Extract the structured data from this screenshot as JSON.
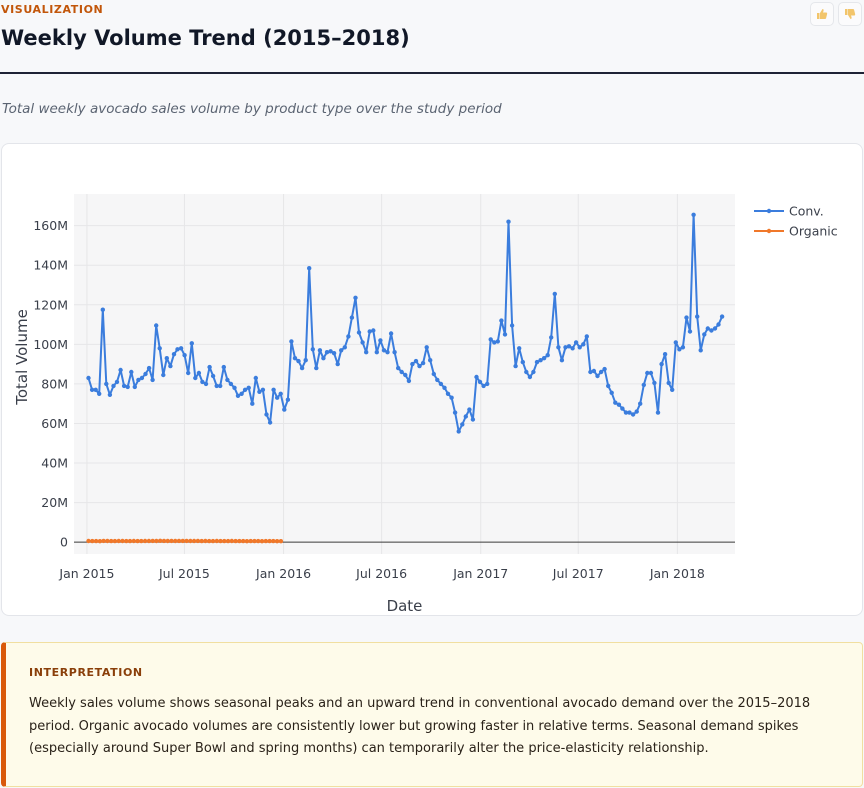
{
  "header": {
    "eyebrow": "VISUALIZATION",
    "title": "Weekly Volume Trend (2015–2018)",
    "subtitle": "Total weekly avocado sales volume by product type over the study period"
  },
  "feedback": {
    "up_icon": "thumbs-up-icon",
    "down_icon": "thumbs-down-icon"
  },
  "interpretation": {
    "title": "INTERPRETATION",
    "body": "Weekly sales volume shows seasonal peaks and an upward trend in conventional avocado demand over the 2015–2018 period. Organic avocado volumes are consistently lower but growing faster in relative terms. Seasonal demand spikes (especially around Super Bowl and spring months) can temporarily alter the price-elasticity relationship."
  },
  "colors": {
    "accent": "#c2560a",
    "conventional": "#3b7ddd",
    "organic": "#f0782a",
    "interp_border": "#d9590b"
  },
  "chart_data": {
    "type": "line",
    "xlabel": "Date",
    "ylabel": "Total Volume",
    "x_ticks": [
      {
        "date": "2015-01-01",
        "label": "Jan 2015"
      },
      {
        "date": "2015-07-01",
        "label": "Jul 2015"
      },
      {
        "date": "2016-01-01",
        "label": "Jan 2016"
      },
      {
        "date": "2016-07-01",
        "label": "Jul 2016"
      },
      {
        "date": "2017-01-01",
        "label": "Jan 2017"
      },
      {
        "date": "2017-07-01",
        "label": "Jul 2017"
      },
      {
        "date": "2018-01-01",
        "label": "Jan 2018"
      }
    ],
    "y_ticks": [
      {
        "value": 0,
        "label": "0"
      },
      {
        "value": 20000000,
        "label": "20M"
      },
      {
        "value": 40000000,
        "label": "40M"
      },
      {
        "value": 60000000,
        "label": "60M"
      },
      {
        "value": 80000000,
        "label": "80M"
      },
      {
        "value": 100000000,
        "label": "100M"
      },
      {
        "value": 120000000,
        "label": "120M"
      },
      {
        "value": 140000000,
        "label": "140M"
      },
      {
        "value": 160000000,
        "label": "160M"
      }
    ],
    "xlim": [
      "2014-12-08",
      "2018-04-18"
    ],
    "ylim": [
      -6000000,
      176000000
    ],
    "grid": true,
    "legend_position": "top-right",
    "series": [
      {
        "name": "Conv.",
        "color": "#3b7ddd",
        "start": "2015-01-04",
        "end": "2018-03-25",
        "values_millions": [
          83,
          77,
          77,
          75,
          117.5,
          80,
          74.5,
          79,
          81,
          87,
          79,
          78.5,
          86,
          78.5,
          82,
          83,
          85,
          88,
          82,
          109.5,
          98,
          84.5,
          93,
          89,
          95,
          97.5,
          98,
          94.5,
          85.5,
          100.5,
          83,
          85.5,
          81,
          80,
          88.5,
          84,
          79,
          79,
          88.5,
          82,
          80,
          78,
          74,
          75,
          77,
          78,
          70,
          83,
          76,
          77,
          64.5,
          60.5,
          77,
          73,
          75,
          67,
          72,
          101.5,
          93,
          91.5,
          88,
          92,
          138.5,
          97.5,
          88,
          97,
          93,
          96,
          96.5,
          95.5,
          90,
          97,
          98.5,
          104,
          113.5,
          123.5,
          106,
          101,
          96,
          106.5,
          107,
          96,
          102,
          97,
          96,
          105.5,
          96,
          88,
          86,
          84.5,
          81.5,
          90,
          91.5,
          89,
          90.5,
          98.5,
          92,
          85,
          82,
          80,
          78,
          75,
          73,
          65.5,
          56,
          59.5,
          63.5,
          67,
          62,
          83.5,
          81,
          79,
          80,
          102.5,
          101,
          101.5,
          112,
          105,
          162,
          109.5,
          89,
          98,
          91,
          86,
          83.5,
          86,
          91,
          92,
          93,
          94.5,
          103.5,
          125.5,
          98.5,
          92,
          98.5,
          99,
          98,
          101,
          98.5,
          100,
          104,
          86,
          86.5,
          84,
          86,
          87.5,
          79,
          75.5,
          70.5,
          69.5,
          67.5,
          65.5,
          65.5,
          64.5,
          66,
          70,
          79.5,
          85.5,
          85.5,
          80.5,
          65.5,
          90,
          95,
          80.5,
          77,
          101,
          97.5,
          98.5,
          113.5,
          106.5,
          165.5,
          114,
          97,
          105,
          108,
          107,
          108,
          110,
          114
        ]
      },
      {
        "name": "Organic",
        "color": "#f0782a",
        "start": "2015-01-04",
        "end": "2015-12-27",
        "values_millions": [
          0.55,
          0.52,
          0.5,
          0.48,
          0.6,
          0.55,
          0.5,
          0.52,
          0.55,
          0.58,
          0.53,
          0.5,
          0.55,
          0.52,
          0.54,
          0.55,
          0.57,
          0.6,
          0.56,
          0.65,
          0.62,
          0.58,
          0.6,
          0.57,
          0.6,
          0.62,
          0.6,
          0.58,
          0.55,
          0.6,
          0.54,
          0.55,
          0.53,
          0.52,
          0.56,
          0.54,
          0.52,
          0.51,
          0.55,
          0.52,
          0.51,
          0.5,
          0.49,
          0.5,
          0.5,
          0.51,
          0.48,
          0.52,
          0.5,
          0.5,
          0.46,
          0.45
        ]
      }
    ]
  }
}
